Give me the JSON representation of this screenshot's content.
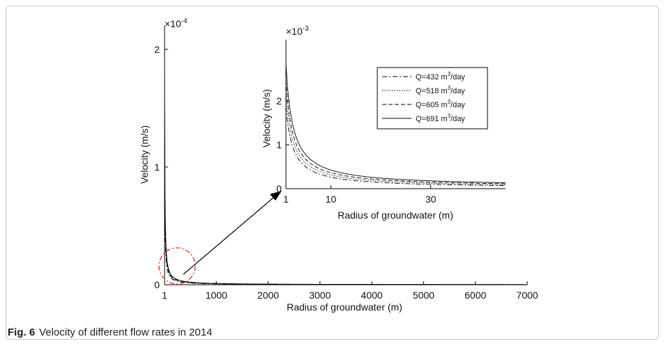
{
  "caption": {
    "label": "Fig. 6",
    "text": "Velocity of different flow rates in 2014"
  },
  "chart_data": [
    {
      "panel": "main",
      "type": "line",
      "xlabel": "Radius of groundwater (m)",
      "ylabel": "Velocity (m/s)",
      "y_exponent": "×10",
      "y_exponent_power": "-4",
      "xlim": [
        1,
        7000
      ],
      "ylim": [
        0,
        2.2
      ],
      "xticks": [
        "1",
        "1000",
        "2000",
        "3000",
        "4000",
        "5000",
        "6000",
        "7000"
      ],
      "yticks": [
        "0",
        "1",
        "2"
      ],
      "grid": false,
      "series": [
        {
          "name": "Q=432 m3/day",
          "k": 0.8,
          "style": "dash-dot"
        },
        {
          "name": "Q=518 m3/day",
          "k": 0.92,
          "style": "dotted"
        },
        {
          "name": "Q=605 m3/day",
          "k": 1.06,
          "style": "dashed"
        },
        {
          "name": "Q=691 m3/day",
          "k": 1.2,
          "style": "solid"
        }
      ],
      "note": "velocity curves decay from about 2.2e-4 m/s near radius 1 m toward 0 by 7000 m"
    },
    {
      "panel": "inset",
      "type": "line",
      "xlabel": "Radius of groundwater (m)",
      "ylabel": "Velocity (m/s)",
      "y_exponent": "×10",
      "y_exponent_power": "-3",
      "xlim": [
        1,
        45
      ],
      "ylim": [
        0,
        3.4
      ],
      "xticks": [
        "1",
        "10",
        "30"
      ],
      "yticks": [
        "0",
        "1",
        "2"
      ],
      "legend": {
        "position": "top-right",
        "entries": [
          {
            "prefix": "Q=432 m",
            "sup": "3",
            "suffix": "/day",
            "style": "dash-dot"
          },
          {
            "prefix": "Q=518 m",
            "sup": "3",
            "suffix": "/day",
            "style": "dotted"
          },
          {
            "prefix": "Q=605 m",
            "sup": "3",
            "suffix": "/day",
            "style": "dashed"
          },
          {
            "prefix": "Q=691 m",
            "sup": "3",
            "suffix": "/day",
            "style": "solid"
          }
        ]
      },
      "series": [
        {
          "name": "Q=432 m3/day",
          "k": 2.6,
          "style": "dash-dot"
        },
        {
          "name": "Q=518 m3/day",
          "k": 3.0,
          "style": "dotted"
        },
        {
          "name": "Q=605 m3/day",
          "k": 3.4,
          "style": "dashed"
        },
        {
          "name": "Q=691 m3/day",
          "k": 3.9,
          "style": "solid"
        }
      ]
    }
  ],
  "colors": {
    "zoom_circle": "#e0302a",
    "axis": "#000000",
    "frame": "#c8c8c8"
  }
}
